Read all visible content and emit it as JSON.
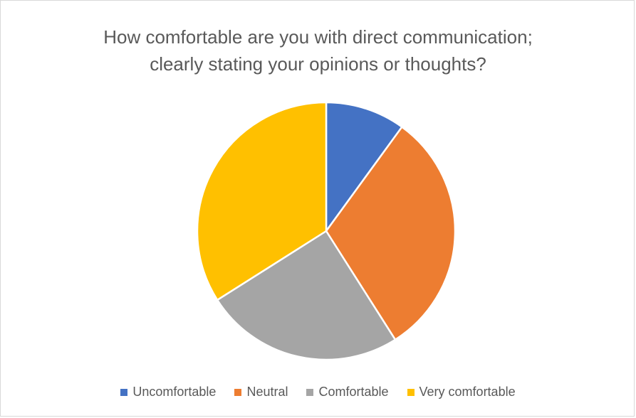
{
  "chart_data": {
    "type": "pie",
    "title_lines": [
      "How comfortable are you with direct communication;",
      "clearly stating your opinions or thoughts?"
    ],
    "categories": [
      "Uncomfortable",
      "Neutral",
      "Comfortable",
      "Very comfortable"
    ],
    "values": [
      10,
      31,
      25,
      34
    ],
    "colors": [
      "#4472c4",
      "#ed7d31",
      "#a5a5a5",
      "#ffc000"
    ],
    "start_angle_deg": 0,
    "direction": "clockwise",
    "legend_position": "bottom",
    "slice_border_color": "#ffffff"
  }
}
